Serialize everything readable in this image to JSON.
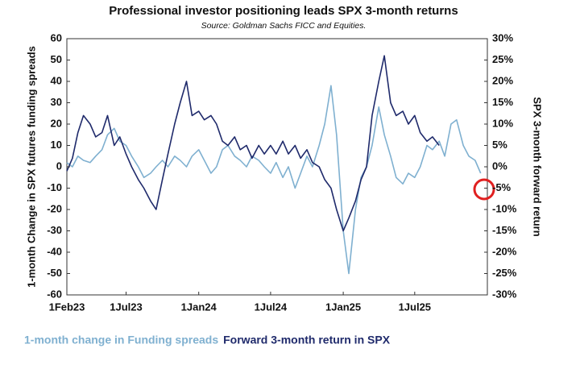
{
  "chart_data": {
    "type": "line",
    "title": "Professional investor positioning leads SPX 3-month returns",
    "subtitle": "Source: Goldman Sachs FICC and Equities.",
    "y_label": "1-month Change in SPX futures funding spreads",
    "y2_label": "SPX 3-month forward return",
    "x": [
      "2023-02-01",
      "2023-02-15",
      "2023-03-01",
      "2023-03-15",
      "2023-04-01",
      "2023-04-15",
      "2023-05-01",
      "2023-05-15",
      "2023-06-01",
      "2023-06-15",
      "2023-07-01",
      "2023-07-15",
      "2023-08-01",
      "2023-08-15",
      "2023-09-01",
      "2023-09-15",
      "2023-10-01",
      "2023-10-15",
      "2023-11-01",
      "2023-11-15",
      "2023-12-01",
      "2023-12-15",
      "2024-01-01",
      "2024-01-15",
      "2024-02-01",
      "2024-02-15",
      "2024-03-01",
      "2024-03-15",
      "2024-04-01",
      "2024-04-15",
      "2024-05-01",
      "2024-05-15",
      "2024-06-01",
      "2024-06-15",
      "2024-07-01",
      "2024-07-15",
      "2024-08-01",
      "2024-08-15",
      "2024-09-01",
      "2024-09-15",
      "2024-10-01",
      "2024-10-15",
      "2024-11-01",
      "2024-11-15",
      "2024-12-01",
      "2024-12-15",
      "2025-01-01",
      "2025-01-15",
      "2025-02-01",
      "2025-02-15",
      "2025-03-01",
      "2025-03-15",
      "2025-04-01",
      "2025-04-15",
      "2025-05-01",
      "2025-05-15",
      "2025-06-01",
      "2025-06-15",
      "2025-07-01",
      "2025-07-15",
      "2025-08-01",
      "2025-08-15",
      "2025-09-01",
      "2025-09-15",
      "2025-10-01",
      "2025-10-15",
      "2025-11-01",
      "2025-11-15",
      "2025-12-01",
      "2025-12-15"
    ],
    "xlim": [
      "2023-02-01",
      "2026-01-01"
    ],
    "xticks": [
      {
        "value": "2023-02-01",
        "label": "1Feb23"
      },
      {
        "value": "2023-07-01",
        "label": "1Jul23"
      },
      {
        "value": "2024-01-01",
        "label": "1Jan24"
      },
      {
        "value": "2024-07-01",
        "label": "1Jul24"
      },
      {
        "value": "2025-01-01",
        "label": "1Jan25"
      },
      {
        "value": "2025-07-01",
        "label": "1Jul25"
      }
    ],
    "ylim": [
      -60,
      60
    ],
    "yticks": [
      -60,
      -50,
      -40,
      -30,
      -20,
      -10,
      0,
      10,
      20,
      30,
      40,
      50,
      60
    ],
    "y2lim": [
      -30,
      30
    ],
    "y2ticks": [
      {
        "value": -30,
        "label": "-30%"
      },
      {
        "value": -25,
        "label": "-25%"
      },
      {
        "value": -20,
        "label": "-20%"
      },
      {
        "value": -15,
        "label": "-15%"
      },
      {
        "value": -10,
        "label": "-10%"
      },
      {
        "value": -5,
        "label": "-5%"
      },
      {
        "value": 0,
        "label": "0%"
      },
      {
        "value": 5,
        "label": "5%"
      },
      {
        "value": 10,
        "label": "10%"
      },
      {
        "value": 15,
        "label": "15%"
      },
      {
        "value": 20,
        "label": "20%"
      },
      {
        "value": 25,
        "label": "25%"
      },
      {
        "value": 30,
        "label": "30%"
      }
    ],
    "grid": false,
    "series": [
      {
        "name": "1-month change in Funding spreads",
        "color": "#7fb0d0",
        "values": [
          2,
          0,
          5,
          3,
          2,
          5,
          8,
          15,
          18,
          12,
          10,
          5,
          0,
          -5,
          -3,
          0,
          3,
          0,
          5,
          3,
          0,
          5,
          8,
          3,
          -3,
          0,
          8,
          10,
          5,
          3,
          0,
          5,
          3,
          0,
          -3,
          2,
          -5,
          0,
          -10,
          -3,
          5,
          0,
          10,
          20,
          38,
          15,
          -30,
          -50,
          -20,
          -5,
          0,
          10,
          28,
          15,
          5,
          -5,
          -8,
          -3,
          -5,
          0,
          10,
          8,
          12,
          5,
          20,
          22,
          10,
          5,
          3,
          -3
        ]
      },
      {
        "name": "Forward 3-month return in SPX",
        "color": "#1f2a6b",
        "axis": "y2",
        "values": [
          -1,
          2,
          8,
          12,
          10,
          7,
          8,
          12,
          5,
          7,
          3,
          0,
          -3,
          -5,
          -8,
          -10,
          -3,
          3,
          10,
          15,
          20,
          12,
          13,
          11,
          12,
          10,
          6,
          5,
          7,
          4,
          5,
          2,
          5,
          3,
          5,
          3,
          6,
          3,
          5,
          2,
          4,
          1,
          0,
          -3,
          -5,
          -10,
          -15,
          -12,
          -8,
          -3,
          0,
          12,
          20,
          26,
          15,
          12,
          13,
          10,
          12,
          8,
          6,
          7,
          5,
          null,
          null,
          null,
          null,
          null,
          null,
          null
        ]
      }
    ]
  }
}
